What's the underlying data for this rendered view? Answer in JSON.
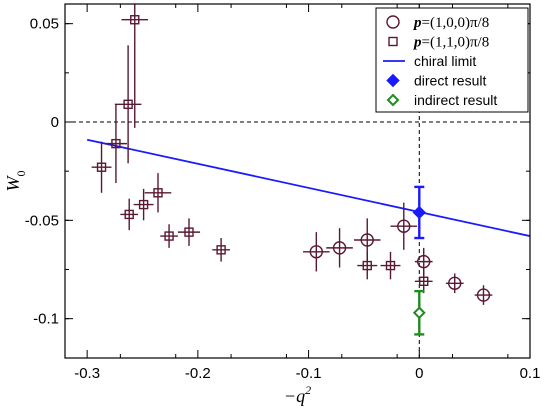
{
  "chart_data": {
    "type": "scatter",
    "xlabel": "−q",
    "xlabel_sup": "2",
    "ylabel": "W",
    "ylabel_sub": "0",
    "xlim": [
      -0.32,
      0.1
    ],
    "ylim": [
      -0.12,
      0.06
    ],
    "x_ticks": [
      -0.3,
      -0.2,
      -0.1,
      0,
      0.1
    ],
    "x_tick_labels": [
      "-0.3",
      "-0.2",
      "-0.1",
      "0",
      "0.1"
    ],
    "y_ticks": [
      -0.1,
      -0.05,
      0,
      0.05
    ],
    "y_tick_labels": [
      "-0.1",
      "-0.05",
      "0",
      "0.05"
    ],
    "grid": false,
    "legend_position": "top-right",
    "colors": {
      "data": "#5a1832",
      "line": "#1a1aff",
      "direct": "#1a1aff",
      "indirect": "#1e8c1e"
    },
    "series": [
      {
        "name": "p=(1,0,0)π/8",
        "legend_bold": "p",
        "legend_rest": "=(1,0,0)π/8",
        "marker": "circle",
        "points": [
          {
            "x": -0.093,
            "y": -0.066,
            "xerr": 0.012,
            "yerr": 0.01
          },
          {
            "x": -0.072,
            "y": -0.064,
            "xerr": 0.012,
            "yerr": 0.01
          },
          {
            "x": -0.047,
            "y": -0.06,
            "xerr": 0.012,
            "yerr": 0.011
          },
          {
            "x": -0.014,
            "y": -0.053,
            "xerr": 0.012,
            "yerr": 0.012
          },
          {
            "x": 0.004,
            "y": -0.071,
            "xerr": 0.008,
            "yerr": 0.007
          },
          {
            "x": 0.032,
            "y": -0.082,
            "xerr": 0.008,
            "yerr": 0.005
          },
          {
            "x": 0.058,
            "y": -0.088,
            "xerr": 0.008,
            "yerr": 0.005
          }
        ]
      },
      {
        "name": "p=(1,1,0)π/8",
        "legend_bold": "p",
        "legend_rest": "=(1,1,0)π/8",
        "marker": "square",
        "points": [
          {
            "x": -0.257,
            "y": 0.052,
            "xerr": 0.012,
            "yerr": 0.055
          },
          {
            "x": -0.263,
            "y": 0.009,
            "xerr": 0.012,
            "yerr": 0.03
          },
          {
            "x": -0.274,
            "y": -0.011,
            "xerr": 0.01,
            "yerr": 0.02
          },
          {
            "x": -0.287,
            "y": -0.023,
            "xerr": 0.009,
            "yerr": 0.013
          },
          {
            "x": -0.236,
            "y": -0.036,
            "xerr": 0.012,
            "yerr": 0.01
          },
          {
            "x": -0.249,
            "y": -0.042,
            "xerr": 0.009,
            "yerr": 0.008
          },
          {
            "x": -0.262,
            "y": -0.047,
            "xerr": 0.008,
            "yerr": 0.008
          },
          {
            "x": -0.208,
            "y": -0.056,
            "xerr": 0.01,
            "yerr": 0.007
          },
          {
            "x": -0.226,
            "y": -0.058,
            "xerr": 0.008,
            "yerr": 0.006
          },
          {
            "x": -0.179,
            "y": -0.065,
            "xerr": 0.008,
            "yerr": 0.006
          },
          {
            "x": -0.047,
            "y": -0.073,
            "xerr": 0.009,
            "yerr": 0.007
          },
          {
            "x": -0.026,
            "y": -0.073,
            "xerr": 0.009,
            "yerr": 0.007
          },
          {
            "x": 0.004,
            "y": -0.081,
            "xerr": 0.008,
            "yerr": 0.006
          }
        ]
      },
      {
        "name": "chiral limit",
        "marker": "line",
        "x": [
          -0.3,
          0.1
        ],
        "y": [
          -0.009,
          -0.058
        ]
      },
      {
        "name": "direct result",
        "marker": "filled-diamond",
        "points": [
          {
            "x": 0.0,
            "y": -0.046,
            "yerr": 0.013
          }
        ]
      },
      {
        "name": "indirect result",
        "marker": "open-diamond",
        "points": [
          {
            "x": 0.0,
            "y": -0.097,
            "yerr": 0.011
          }
        ]
      }
    ]
  }
}
